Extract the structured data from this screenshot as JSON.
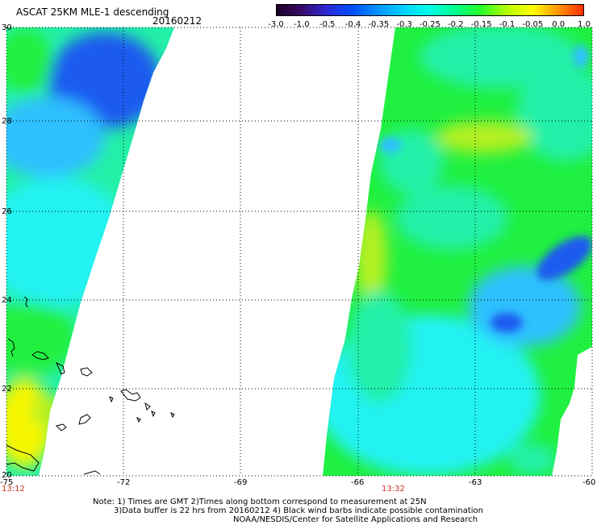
{
  "header": {
    "product_title": "ASCAT 25KM MLE-1 descending",
    "date": "20160212"
  },
  "colorbar": {
    "labels": [
      "-3.0",
      "-1.0",
      "-0.5",
      "-0.4",
      "-0.35",
      "-0.3",
      "-0.25",
      "-0.2",
      "-0.15",
      "-0.1",
      "-0.05",
      "0.0",
      "1.0"
    ],
    "colors": [
      "#1a0026",
      "#3a0a6a",
      "#2a2ad8",
      "#0050ff",
      "#0096ff",
      "#00d2ff",
      "#00ffe6",
      "#00ff8c",
      "#28ff28",
      "#b4ff00",
      "#ffff00",
      "#ff9600",
      "#ff2d00"
    ]
  },
  "map": {
    "lon_ticks": [
      "-75",
      "-72",
      "-69",
      "-66",
      "-63",
      "-60"
    ],
    "lat_ticks": [
      "30",
      "28",
      "26",
      "24",
      "22",
      "20"
    ],
    "pass_times": [
      "13:12",
      "13:32"
    ],
    "field_colors": {
      "blue": "#1e5af0",
      "light_blue": "#2ec0ff",
      "cyan": "#24f2f2",
      "aqua_green": "#24f0a8",
      "green": "#20f040",
      "yellow_green": "#b4f020",
      "yellow": "#f6f600"
    }
  },
  "footer": {
    "note_line1": "Note: 1) Times are GMT 2)Times along bottom correspond to measurement at 25N",
    "note_line2": "3)Data buffer is 22 hrs from 20160212 4) Black wind barbs indicate possible contamination",
    "credit": "NOAA/NESDIS/Center for Satellite Applications and Research"
  }
}
